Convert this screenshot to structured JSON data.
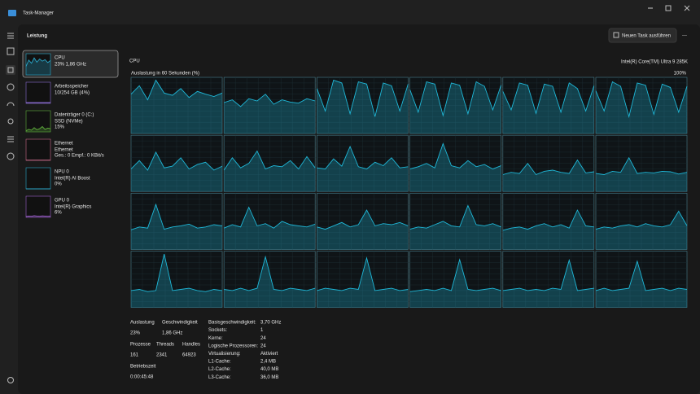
{
  "window": {
    "title": "Task-Manager"
  },
  "header": {
    "section": "Leistung",
    "button": "Neuen Task ausführen"
  },
  "sidebar": [
    {
      "name": "CPU",
      "lines": [
        "23% 1,86 GHz"
      ],
      "color": "#2aa7c9",
      "graph": [
        40,
        70,
        55,
        80,
        60,
        75,
        65,
        72,
        58,
        68
      ]
    },
    {
      "name": "Arbeitsspeicher",
      "lines": [
        "10/254 GB (4%)"
      ],
      "color": "#8a6cd1",
      "graph": [
        4,
        4,
        4,
        4,
        4,
        4,
        4,
        4,
        4,
        4
      ]
    },
    {
      "name": "Datenträger 0 (C:)",
      "lines": [
        "SSD (NVMe)",
        "15%"
      ],
      "color": "#5fae3c",
      "graph": [
        5,
        12,
        8,
        20,
        10,
        15,
        25,
        12,
        18,
        15
      ]
    },
    {
      "name": "Ethernet",
      "lines": [
        "Ethernet",
        "Ges.: 0 Empf.: 0 KBit/s"
      ],
      "color": "#c86a8a",
      "graph": [
        1,
        1,
        1,
        1,
        1,
        1,
        1,
        1,
        1,
        1
      ]
    },
    {
      "name": "NPU 0",
      "lines": [
        "Intel(R) AI Boost",
        "0%"
      ],
      "color": "#2aa7c9",
      "graph": [
        0,
        0,
        0,
        0,
        0,
        0,
        0,
        0,
        0,
        0
      ]
    },
    {
      "name": "GPU 0",
      "lines": [
        "Intel(R) Graphics",
        "6%"
      ],
      "color": "#9a5fc9",
      "graph": [
        4,
        6,
        5,
        8,
        6,
        5,
        7,
        6,
        5,
        6
      ]
    }
  ],
  "cpu": {
    "title": "CPU",
    "model": "Intel(R) Core(TM) Ultra 9 285K",
    "graph_label": "Auslastung in 60 Sekunden (%)",
    "graph_max": "100%",
    "ylim": [
      0,
      100
    ],
    "color": "#1fb8d8",
    "cores": [
      [
        70,
        85,
        60,
        95,
        72,
        68,
        80,
        64,
        75,
        70,
        66,
        72
      ],
      [
        55,
        60,
        48,
        62,
        58,
        70,
        52,
        60,
        56,
        54,
        62,
        58
      ],
      [
        80,
        40,
        95,
        90,
        35,
        92,
        88,
        30,
        90,
        85,
        40,
        88
      ],
      [
        78,
        38,
        92,
        88,
        32,
        90,
        86,
        35,
        92,
        84,
        42,
        86
      ],
      [
        75,
        42,
        90,
        86,
        36,
        88,
        84,
        38,
        90,
        80,
        40,
        85
      ],
      [
        76,
        40,
        92,
        84,
        30,
        90,
        86,
        34,
        88,
        82,
        38,
        84
      ],
      [
        40,
        55,
        38,
        70,
        42,
        45,
        60,
        40,
        48,
        52,
        38,
        45
      ],
      [
        38,
        60,
        42,
        50,
        72,
        40,
        46,
        44,
        55,
        40,
        62,
        42
      ],
      [
        42,
        40,
        58,
        45,
        80,
        44,
        40,
        52,
        46,
        60,
        42,
        44
      ],
      [
        40,
        44,
        50,
        42,
        85,
        46,
        42,
        55,
        44,
        48,
        40,
        46
      ],
      [
        30,
        34,
        32,
        50,
        30,
        36,
        38,
        34,
        32,
        56,
        33,
        35
      ],
      [
        32,
        30,
        36,
        34,
        60,
        32,
        34,
        33,
        36,
        35,
        31,
        34
      ],
      [
        35,
        40,
        38,
        80,
        36,
        40,
        42,
        45,
        38,
        40,
        44,
        42
      ],
      [
        38,
        44,
        40,
        75,
        42,
        46,
        38,
        50,
        44,
        42,
        40,
        45
      ],
      [
        40,
        36,
        42,
        48,
        40,
        44,
        70,
        42,
        46,
        44,
        48,
        42
      ],
      [
        36,
        40,
        38,
        44,
        50,
        42,
        40,
        78,
        44,
        42,
        46,
        40
      ],
      [
        34,
        38,
        40,
        36,
        42,
        46,
        40,
        44,
        38,
        70,
        42,
        40
      ],
      [
        36,
        40,
        38,
        42,
        44,
        40,
        46,
        42,
        40,
        44,
        68,
        42
      ],
      [
        30,
        32,
        28,
        30,
        95,
        30,
        32,
        34,
        30,
        28,
        32,
        30
      ],
      [
        32,
        30,
        34,
        30,
        34,
        90,
        32,
        30,
        34,
        32,
        30,
        34
      ],
      [
        30,
        34,
        32,
        30,
        34,
        32,
        88,
        30,
        32,
        34,
        30,
        32
      ],
      [
        28,
        30,
        32,
        30,
        34,
        30,
        85,
        32,
        30,
        32,
        34,
        30
      ],
      [
        30,
        32,
        34,
        30,
        32,
        30,
        34,
        32,
        84,
        30,
        32,
        34
      ],
      [
        30,
        34,
        30,
        32,
        34,
        82,
        30,
        32,
        34,
        30,
        34,
        32
      ]
    ],
    "stats": [
      {
        "label": "Auslastung",
        "value": "23%"
      },
      {
        "label": "Geschwindigkeit",
        "value": "1,86 GHz"
      },
      {
        "label": "Prozesse",
        "value": "161"
      },
      {
        "label": "Threads",
        "value": "2341"
      },
      {
        "label": "Handles",
        "value": "64923"
      },
      {
        "label": "Betriebszeit",
        "value": "0:00:45:48"
      }
    ],
    "specs": [
      {
        "label": "Basisgeschwindigkeit:",
        "value": "3,70 GHz"
      },
      {
        "label": "Sockets:",
        "value": "1"
      },
      {
        "label": "Kerne:",
        "value": "24"
      },
      {
        "label": "Logische Prozessoren:",
        "value": "24"
      },
      {
        "label": "Virtualisierung:",
        "value": "Aktiviert"
      },
      {
        "label": "L1-Cache:",
        "value": "2,4 MB"
      },
      {
        "label": "L2-Cache:",
        "value": "40,0 MB"
      },
      {
        "label": "L3-Cache:",
        "value": "36,0 MB"
      }
    ]
  }
}
